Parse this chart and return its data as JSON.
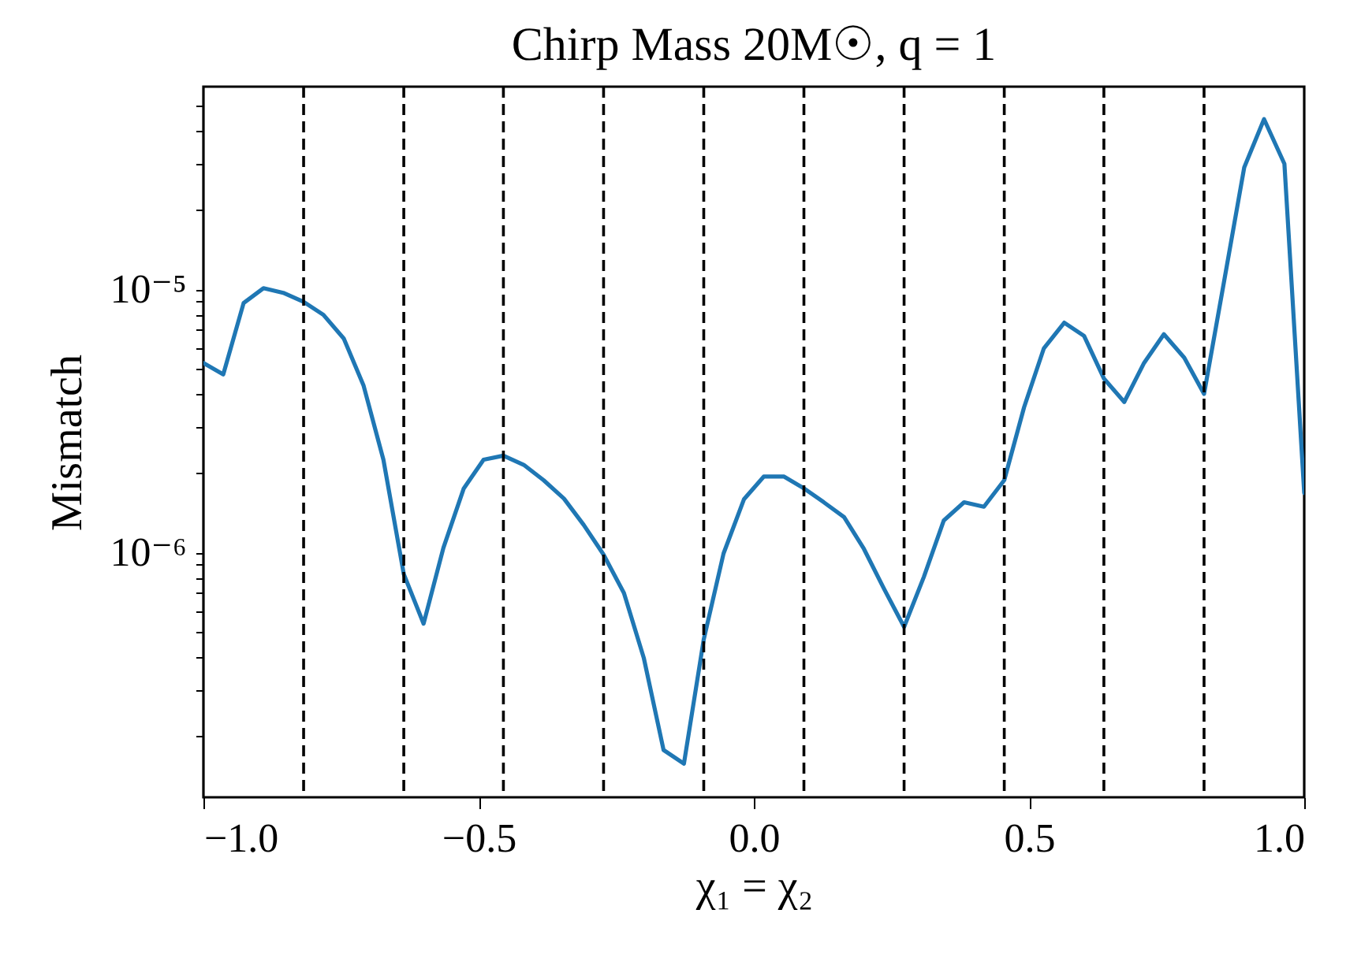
{
  "chart_data": {
    "type": "line",
    "title": "Chirp Mass 20M☉, q = 1",
    "xlabel": "χ₁ = χ₂",
    "ylabel": "Mismatch",
    "log": "y",
    "grid": false,
    "legend": false,
    "marker": "none",
    "line_style": "solid",
    "x": [
      -1,
      -0.964,
      -0.927,
      -0.891,
      -0.855,
      -0.818,
      -0.782,
      -0.745,
      -0.709,
      -0.673,
      -0.636,
      -0.6,
      -0.564,
      -0.527,
      -0.491,
      -0.455,
      -0.418,
      -0.382,
      -0.345,
      -0.309,
      -0.273,
      -0.236,
      -0.2,
      -0.164,
      -0.127,
      -0.091,
      -0.055,
      -0.018,
      0.018,
      0.055,
      0.091,
      0.127,
      0.164,
      0.2,
      0.236,
      0.273,
      0.309,
      0.345,
      0.382,
      0.418,
      0.455,
      0.491,
      0.527,
      0.564,
      0.6,
      0.636,
      0.673,
      0.709,
      0.745,
      0.782,
      0.818,
      0.855,
      0.891,
      0.927,
      0.964,
      1
    ],
    "series": [
      {
        "color": "#1f77b4",
        "values": [
          5.25e-06,
          4.75e-06,
          8.87e-06,
          1.01e-05,
          9.7e-06,
          8.96e-06,
          8e-06,
          6.5e-06,
          4.3e-06,
          2.25e-06,
          8.26e-07,
          5.35e-07,
          1.04e-06,
          1.75e-06,
          2.25e-06,
          2.33e-06,
          2.15e-06,
          1.88e-06,
          1.6e-06,
          1.27e-06,
          9.8e-07,
          7e-07,
          3.97e-07,
          1.77e-07,
          1.57e-07,
          4.66e-07,
          9.9e-07,
          1.59e-06,
          1.94e-06,
          1.94e-06,
          1.75e-06,
          1.55e-06,
          1.36e-06,
          1.03e-06,
          7.3e-07,
          5.2e-07,
          8.07e-07,
          1.32e-06,
          1.55e-06,
          1.49e-06,
          1.88e-06,
          3.56e-06,
          5.97e-06,
          7.47e-06,
          6.65e-06,
          4.58e-06,
          3.73e-06,
          5.25e-06,
          6.75e-06,
          5.5e-06,
          4e-06,
          1.09e-05,
          2.91e-05,
          4.44e-05,
          3e-05,
          1.68e-06
        ]
      }
    ],
    "xlim": [
      -1,
      1
    ],
    "xticks": [
      {
        "value": -1,
        "label": "−1.0"
      },
      {
        "value": -0.5,
        "label": "−0.5"
      },
      {
        "value": 0,
        "label": "0.0"
      },
      {
        "value": 0.5,
        "label": "0.5"
      },
      {
        "value": 1,
        "label": "1.0"
      }
    ],
    "ylim": [
      1.17e-07,
      5.9e-05
    ],
    "yticks": [
      {
        "value": 2e-07,
        "label": null
      },
      {
        "value": 3e-07,
        "label": null
      },
      {
        "value": 4e-07,
        "label": null
      },
      {
        "value": 5e-07,
        "label": null
      },
      {
        "value": 6e-07,
        "label": null
      },
      {
        "value": 7e-07,
        "label": null
      },
      {
        "value": 8e-07,
        "label": null
      },
      {
        "value": 9e-07,
        "label": null
      },
      {
        "value": 1e-06,
        "label": "10⁻⁶"
      },
      {
        "value": 2e-06,
        "label": null
      },
      {
        "value": 3e-06,
        "label": null
      },
      {
        "value": 4e-06,
        "label": null
      },
      {
        "value": 5e-06,
        "label": null
      },
      {
        "value": 6e-06,
        "label": null
      },
      {
        "value": 7e-06,
        "label": null
      },
      {
        "value": 8e-06,
        "label": null
      },
      {
        "value": 9e-06,
        "label": null
      },
      {
        "value": 1e-05,
        "label": "10⁻⁵"
      },
      {
        "value": 2e-05,
        "label": null
      },
      {
        "value": 3e-05,
        "label": null
      },
      {
        "value": 4e-05,
        "label": null
      },
      {
        "value": 5e-05,
        "label": null
      }
    ],
    "ref_lines": [
      {
        "axis": "x",
        "value": -0.818,
        "color": "#000000",
        "line_style": "dashed"
      },
      {
        "axis": "x",
        "value": -0.636,
        "color": "#000000",
        "line_style": "dashed"
      },
      {
        "axis": "x",
        "value": -0.455,
        "color": "#000000",
        "line_style": "dashed"
      },
      {
        "axis": "x",
        "value": -0.273,
        "color": "#000000",
        "line_style": "dashed"
      },
      {
        "axis": "x",
        "value": -0.091,
        "color": "#000000",
        "line_style": "dashed"
      },
      {
        "axis": "x",
        "value": 0.091,
        "color": "#000000",
        "line_style": "dashed"
      },
      {
        "axis": "x",
        "value": 0.273,
        "color": "#000000",
        "line_style": "dashed"
      },
      {
        "axis": "x",
        "value": 0.455,
        "color": "#000000",
        "line_style": "dashed"
      },
      {
        "axis": "x",
        "value": 0.636,
        "color": "#000000",
        "line_style": "dashed"
      },
      {
        "axis": "x",
        "value": 0.818,
        "color": "#000000",
        "line_style": "dashed"
      }
    ]
  }
}
